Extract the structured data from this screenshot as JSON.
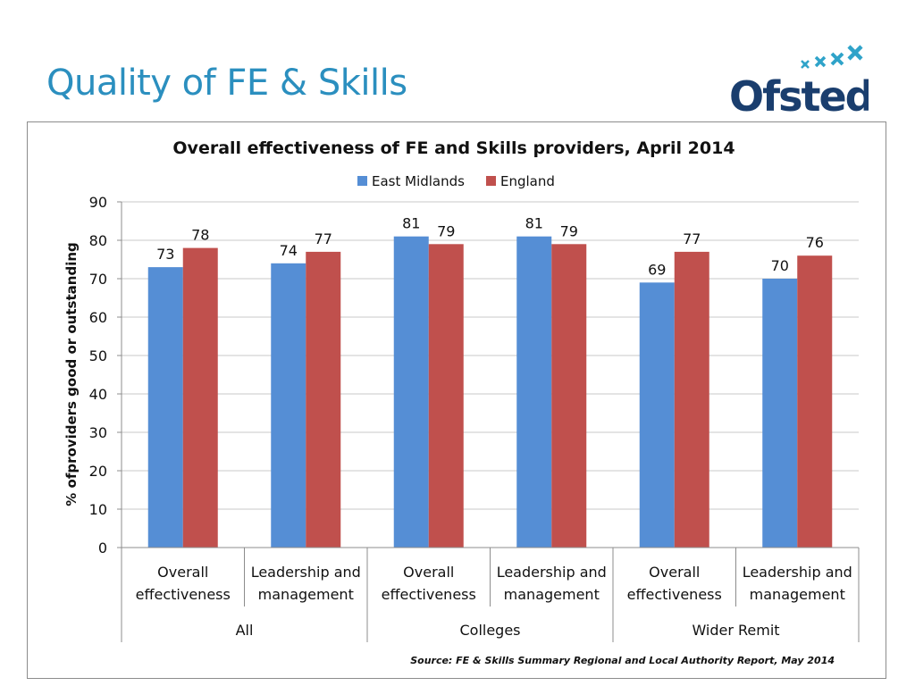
{
  "slide": {
    "title": "Quality of FE & Skills",
    "logo_text": "Ofsted"
  },
  "colors": {
    "title": "#2b8fbf",
    "logo": "#1a3e6e",
    "logo_stars": "#2fa3c9",
    "east_midlands": "#558ed5",
    "england": "#c0504d"
  },
  "chart_data": {
    "type": "bar",
    "title": "Overall effectiveness of FE and Skills providers,  April 2014",
    "ylabel": "% ofproviders good or outstanding",
    "xlabel": "",
    "ylim": [
      0,
      90
    ],
    "yticks": [
      0,
      10,
      20,
      30,
      40,
      50,
      60,
      70,
      80,
      90
    ],
    "grid": true,
    "legend_position": "top",
    "categories": [
      [
        "Overall",
        "effectiveness"
      ],
      [
        "Leadership and",
        "management"
      ],
      [
        "Overall",
        "effectiveness"
      ],
      [
        "Leadership and",
        "management"
      ],
      [
        "Overall",
        "effectiveness"
      ],
      [
        "Leadership and",
        "management"
      ]
    ],
    "groups": [
      "All",
      "Colleges",
      "Wider Remit"
    ],
    "series": [
      {
        "name": "East Midlands",
        "values": [
          73,
          74,
          81,
          81,
          69,
          70
        ]
      },
      {
        "name": "England",
        "values": [
          78,
          77,
          79,
          79,
          77,
          76
        ]
      }
    ],
    "source": "Source: FE & Skills Summary Regional and Local Authority Report, May 2014"
  }
}
